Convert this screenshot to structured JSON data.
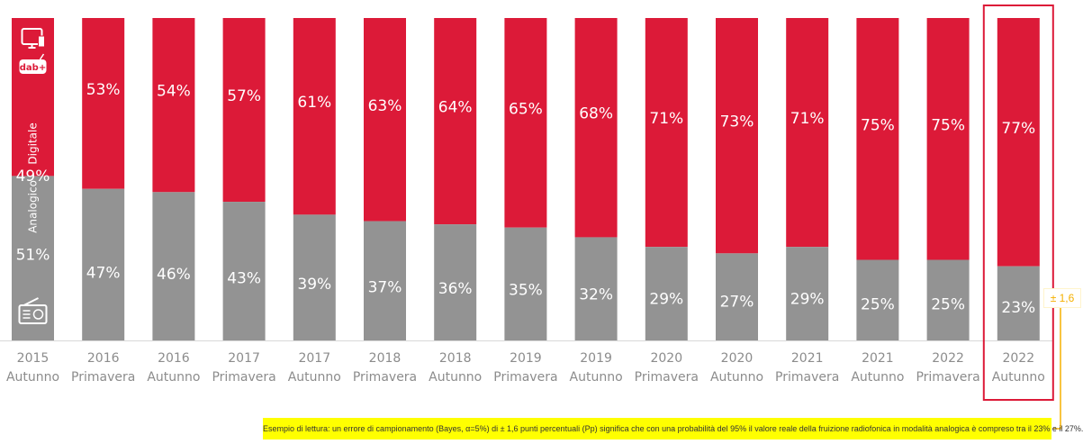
{
  "chart_data": {
    "type": "bar",
    "stacked": true,
    "percent_scale": true,
    "categories": [
      [
        "2015",
        "Autunno"
      ],
      [
        "2016",
        "Primavera"
      ],
      [
        "2016",
        "Autunno"
      ],
      [
        "2017",
        "Primavera"
      ],
      [
        "2017",
        "Autunno"
      ],
      [
        "2018",
        "Primavera"
      ],
      [
        "2018",
        "Autunno"
      ],
      [
        "2019",
        "Primavera"
      ],
      [
        "2019",
        "Autunno"
      ],
      [
        "2020",
        "Primavera"
      ],
      [
        "2020",
        "Autunno"
      ],
      [
        "2021",
        "Primavera"
      ],
      [
        "2021",
        "Autunno"
      ],
      [
        "2022",
        "Primavera"
      ],
      [
        "2022",
        "Autunno"
      ]
    ],
    "series": [
      {
        "name": "Analogico",
        "color": "#939393",
        "values": [
          51,
          47,
          46,
          43,
          39,
          37,
          36,
          35,
          32,
          29,
          27,
          29,
          25,
          25,
          23
        ],
        "labels": [
          "51%",
          "47%",
          "46%",
          "43%",
          "39%",
          "37%",
          "36%",
          "35%",
          "32%",
          "29%",
          "27%",
          "29%",
          "25%",
          "25%",
          "23%"
        ]
      },
      {
        "name": "Digitale",
        "color": "#dc1a38",
        "values": [
          49,
          53,
          54,
          57,
          61,
          63,
          64,
          65,
          68,
          71,
          73,
          71,
          75,
          75,
          77
        ],
        "labels": [
          "49%",
          "53%",
          "54%",
          "57%",
          "61%",
          "63%",
          "64%",
          "65%",
          "68%",
          "71%",
          "73%",
          "71%",
          "75%",
          "75%",
          "77%"
        ]
      }
    ],
    "ylim": [
      0,
      100
    ],
    "highlight_index": 14,
    "highlight_color": "#dc1a38",
    "icons": [
      "monitor-icon",
      "dab-radio-icon",
      "radio-icon"
    ]
  },
  "error_margin": "± 1,6",
  "reading_note": "Esempio di lettura: un errore di campionamento (Bayes, α=5%) di ± 1,6 punti percentuali (Pp) significa che con una probabilità del 95% il valore reale della fruizione radiofonica in modalità analogica è compreso tra il 23% e il 27%.",
  "note_color": "#ffff00",
  "accent_color": "#f5b000"
}
